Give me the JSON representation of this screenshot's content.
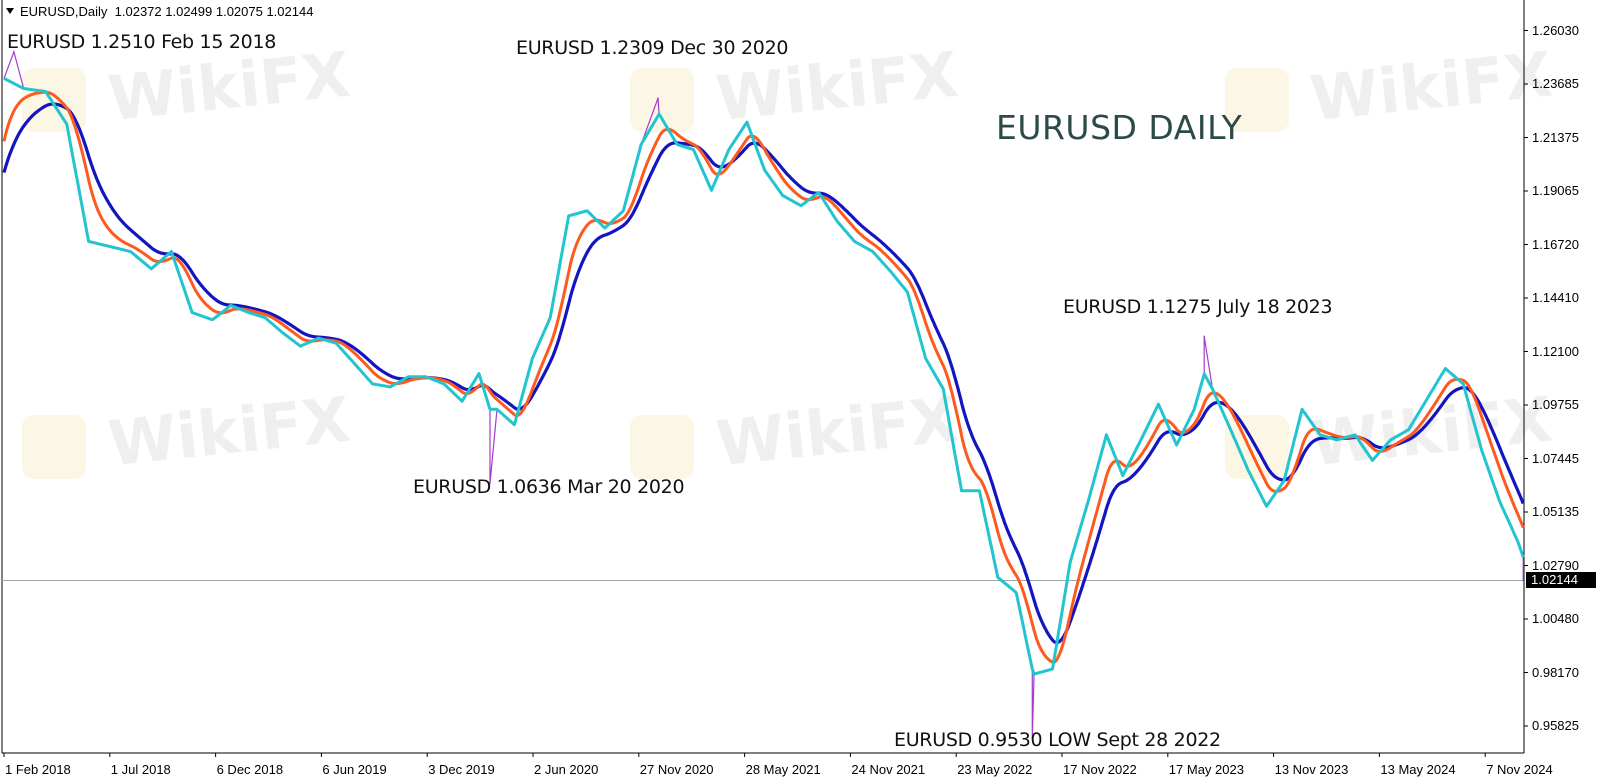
{
  "header": {
    "symbol_timeframe": "EURUSD,Daily",
    "ohlc": "1.02372 1.02499 1.02075 1.02144"
  },
  "watermark": "WikiFX",
  "annotations": {
    "title": "EURUSD DAILY",
    "a1": "EURUSD 1.2510 Feb 15 2018",
    "a2": "EURUSD 1.2309 Dec 30 2020",
    "a3": "EURUSD 1.0636 Mar 20 2020",
    "a4": "EURUSD 1.1275 July 18 2023",
    "a5": "EURUSD 0.9530 LOW Sept 28 2022"
  },
  "chart_data": {
    "type": "line",
    "title": "EURUSD DAILY",
    "current_price": "1.02144",
    "ylim": [
      0.95825,
      1.2603
    ],
    "y_ticks": [
      "1.26030",
      "1.23685",
      "1.21375",
      "1.19065",
      "1.16720",
      "1.14410",
      "1.12100",
      "1.09755",
      "1.07445",
      "1.05135",
      "1.02790",
      "1.00480",
      "0.98170",
      "0.95825"
    ],
    "x_ticks": [
      "1 Feb 2018",
      "1 Jul 2018",
      "6 Dec 2018",
      "6 Jun 2019",
      "3 Dec 2019",
      "2 Jun 2020",
      "27 Nov 2020",
      "28 May 2021",
      "24 Nov 2021",
      "23 May 2022",
      "17 Nov 2022",
      "17 May 2023",
      "13 Nov 2023",
      "13 May 2024",
      "7 Nov 2024"
    ],
    "grid": false,
    "colors": {
      "price": "#a43cc8",
      "fast": "#22c4cf",
      "medium": "#ff5a1e",
      "slow": "#1414c0",
      "current_line": "#9aa8a8"
    },
    "fast_ma": [
      [
        "2018-02-01",
        1.2395
      ],
      [
        "2018-03-01",
        1.2351
      ],
      [
        "2018-04-01",
        1.2338
      ],
      [
        "2018-05-01",
        1.2196
      ],
      [
        "2018-06-01",
        1.1687
      ],
      [
        "2018-07-01",
        1.1665
      ],
      [
        "2018-08-01",
        1.1643
      ],
      [
        "2018-09-01",
        1.1568
      ],
      [
        "2018-10-01",
        1.1643
      ],
      [
        "2018-11-01",
        1.1378
      ],
      [
        "2018-12-01",
        1.1347
      ],
      [
        "2019-01-01",
        1.1409
      ],
      [
        "2019-02-01",
        1.1378
      ],
      [
        "2019-03-01",
        1.1356
      ],
      [
        "2019-04-01",
        1.1289
      ],
      [
        "2019-05-01",
        1.1232
      ],
      [
        "2019-06-01",
        1.1267
      ],
      [
        "2019-07-01",
        1.1245
      ],
      [
        "2019-08-01",
        1.1157
      ],
      [
        "2019-09-01",
        1.1068
      ],
      [
        "2019-10-01",
        1.1055
      ],
      [
        "2019-11-01",
        1.1099
      ],
      [
        "2019-12-01",
        1.1099
      ],
      [
        "2020-01-01",
        1.1068
      ],
      [
        "2020-02-01",
        1.0993
      ],
      [
        "2020-03-01",
        1.1113
      ],
      [
        "2020-03-20",
        1.0958
      ],
      [
        "2020-04-01",
        1.0958
      ],
      [
        "2020-05-01",
        1.0891
      ],
      [
        "2020-06-01",
        1.1179
      ],
      [
        "2020-07-01",
        1.1356
      ],
      [
        "2020-08-01",
        1.1798
      ],
      [
        "2020-09-01",
        1.182
      ],
      [
        "2020-10-01",
        1.1745
      ],
      [
        "2020-11-01",
        1.182
      ],
      [
        "2020-12-01",
        1.2108
      ],
      [
        "2021-01-01",
        1.224
      ],
      [
        "2021-02-01",
        1.2108
      ],
      [
        "2021-03-01",
        1.2086
      ],
      [
        "2021-04-01",
        1.1909
      ],
      [
        "2021-05-01",
        1.2086
      ],
      [
        "2021-06-01",
        1.2205
      ],
      [
        "2021-07-01",
        1.1997
      ],
      [
        "2021-08-01",
        1.1886
      ],
      [
        "2021-09-01",
        1.1842
      ],
      [
        "2021-10-01",
        1.19
      ],
      [
        "2021-11-01",
        1.1776
      ],
      [
        "2021-12-01",
        1.1687
      ],
      [
        "2022-01-01",
        1.1643
      ],
      [
        "2022-02-01",
        1.1555
      ],
      [
        "2022-03-01",
        1.1467
      ],
      [
        "2022-04-01",
        1.1179
      ],
      [
        "2022-05-01",
        1.1046
      ],
      [
        "2022-06-01",
        1.0604
      ],
      [
        "2022-07-01",
        1.0604
      ],
      [
        "2022-08-01",
        1.0228
      ],
      [
        "2022-09-01",
        1.0162
      ],
      [
        "2022-09-28",
        0.983
      ],
      [
        "2022-10-01",
        0.9808
      ],
      [
        "2022-11-01",
        0.983
      ],
      [
        "2022-12-01",
        1.0294
      ],
      [
        "2023-01-01",
        1.056
      ],
      [
        "2023-02-01",
        1.0847
      ],
      [
        "2023-03-01",
        1.067
      ],
      [
        "2023-04-01",
        1.0825
      ],
      [
        "2023-05-01",
        1.098
      ],
      [
        "2023-06-01",
        1.0803
      ],
      [
        "2023-07-01",
        1.0958
      ],
      [
        "2023-07-18",
        1.1112
      ],
      [
        "2023-08-01",
        1.1046
      ],
      [
        "2023-09-01",
        1.0869
      ],
      [
        "2023-10-01",
        1.0692
      ],
      [
        "2023-11-01",
        1.0537
      ],
      [
        "2023-12-01",
        1.0648
      ],
      [
        "2024-01-01",
        1.0958
      ],
      [
        "2024-02-01",
        1.0847
      ],
      [
        "2024-03-01",
        1.0825
      ],
      [
        "2024-04-01",
        1.0847
      ],
      [
        "2024-05-01",
        1.0736
      ],
      [
        "2024-06-01",
        1.0825
      ],
      [
        "2024-07-01",
        1.0869
      ],
      [
        "2024-08-01",
        1.1002
      ],
      [
        "2024-09-01",
        1.1135
      ],
      [
        "2024-10-01",
        1.1068
      ],
      [
        "2024-11-01",
        1.0781
      ],
      [
        "2024-12-01",
        1.056
      ],
      [
        "2025-01-01",
        1.0383
      ],
      [
        "2025-01-10",
        1.0316
      ]
    ],
    "price_extremes": [
      [
        "2018-02-15",
        1.251
      ],
      [
        "2020-03-20",
        1.0636
      ],
      [
        "2020-12-30",
        1.2309
      ],
      [
        "2022-09-28",
        0.953
      ],
      [
        "2023-07-18",
        1.1275
      ],
      [
        "2025-01-10",
        1.02144
      ]
    ],
    "medium_ma_start": 1.2108,
    "slow_ma_start": 1.1975
  }
}
